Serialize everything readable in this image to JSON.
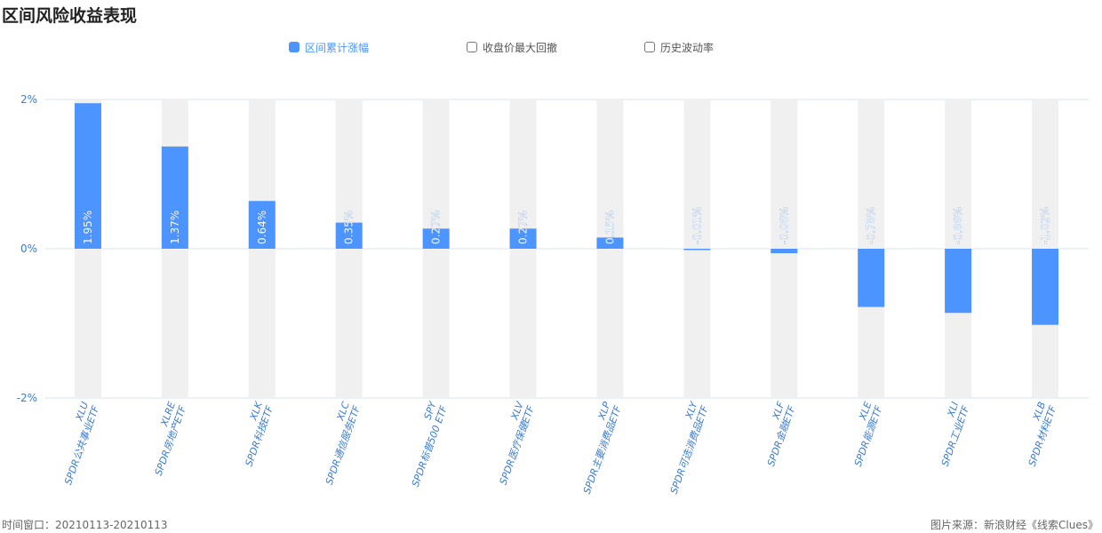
{
  "header": {
    "title": "区间风险收益表现"
  },
  "legend": [
    {
      "label": "区间累计涨幅",
      "active": true
    },
    {
      "label": "收盘价最大回撤",
      "active": false
    },
    {
      "label": "历史波动率",
      "active": false
    }
  ],
  "colors": {
    "bar": "#4c94ff",
    "band": "#f0f0f0",
    "axis_text": "#3a7bd5",
    "grid": "#d6e6f2"
  },
  "footer": {
    "window": "时间窗口：20210113-20210113",
    "source": "图片来源：新浪财经《线索Clues》"
  },
  "chart_data": {
    "type": "bar",
    "categories": [
      {
        "code": "XLU",
        "name": "SPDR公共事业ETF"
      },
      {
        "code": "XLRE",
        "name": "SPDR房地产ETF"
      },
      {
        "code": "XLK",
        "name": "SPDR科技ETF"
      },
      {
        "code": "XLC",
        "name": "SPDR通信服务ETF"
      },
      {
        "code": "SPY",
        "name": "SPDR标普500 ETF"
      },
      {
        "code": "XLV",
        "name": "SPDR医疗保健ETF"
      },
      {
        "code": "XLP",
        "name": "SPDR主要消费品ETF"
      },
      {
        "code": "XLY",
        "name": "SPDR可选消费品ETF"
      },
      {
        "code": "XLF",
        "name": "SPDR金融ETF"
      },
      {
        "code": "XLE",
        "name": "SPDR能源ETF"
      },
      {
        "code": "XLI",
        "name": "SPDR工业ETF"
      },
      {
        "code": "XLB",
        "name": "SPDR材料ETF"
      }
    ],
    "series": [
      {
        "name": "区间累计涨幅",
        "values": [
          1.95,
          1.37,
          0.64,
          0.35,
          0.27,
          0.27,
          0.15,
          -0.01,
          -0.06,
          -0.78,
          -0.86,
          -1.02
        ],
        "labels": [
          "1.95%",
          "1.37%",
          "0.64%",
          "0.35%",
          "0.27%",
          "0.27%",
          "0.15%",
          "-0.01%",
          "-0.06%",
          "-0.78%",
          "-0.86%",
          "-1.02%"
        ]
      }
    ],
    "yticks": [
      {
        "value": 2,
        "label": "2%"
      },
      {
        "value": 0,
        "label": "0%"
      },
      {
        "value": -2,
        "label": "-2%"
      }
    ],
    "ylim": [
      -2,
      2
    ],
    "grid": true
  }
}
